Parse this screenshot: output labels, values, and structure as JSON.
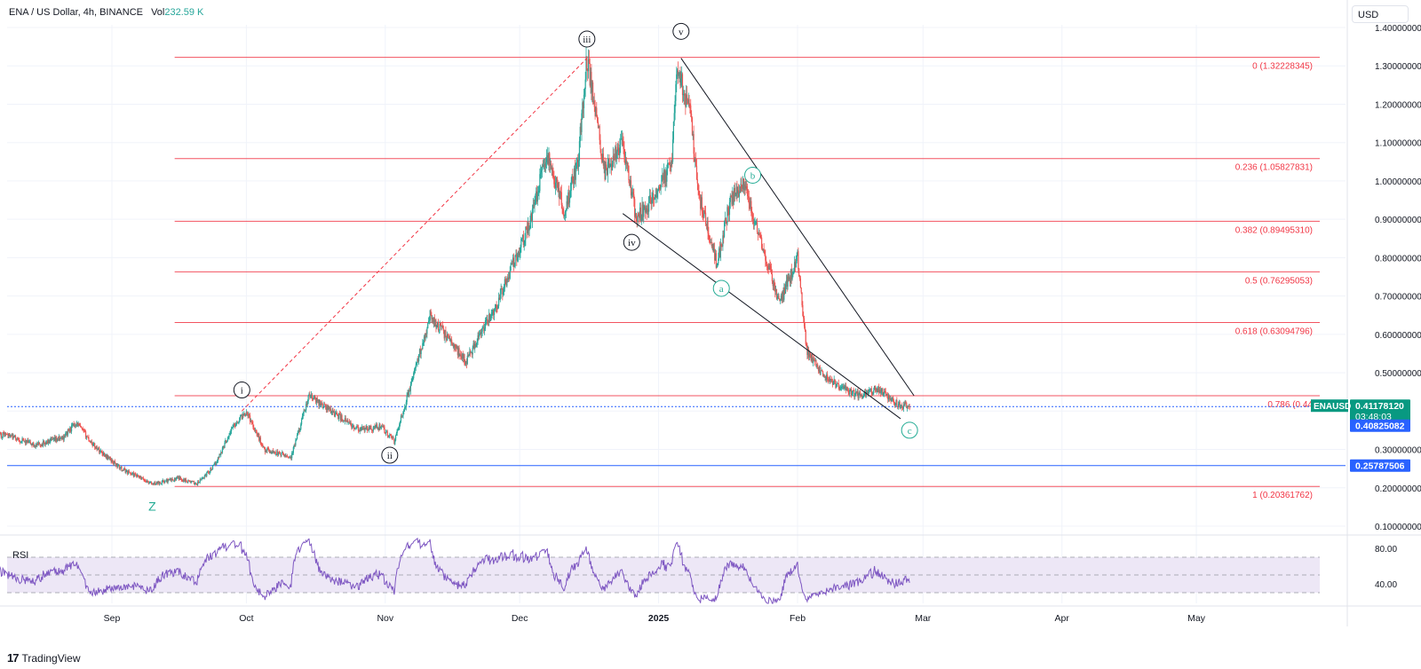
{
  "header": {
    "symbol": "ENA / US Dollar, 4h, BINANCE",
    "vol_label": "Vol",
    "vol_value": "232.59 K"
  },
  "currency_button": "USD",
  "rsi_label": "RSI",
  "brand": "TradingView",
  "colors": {
    "up": "#26a69a",
    "down": "#ef5350",
    "fib": "#f23645",
    "blue_line": "#2962ff",
    "rsi_line": "#7e57c2",
    "rsi_band": "#ede7f6",
    "wave_green": "#22ab94",
    "z_green": "#22ab94"
  },
  "chart_data": {
    "type": "candlestick",
    "price_axis": {
      "min": 0.05,
      "max": 1.42,
      "ticks": [
        "1.40000000",
        "1.30000000",
        "1.20000000",
        "1.10000000",
        "1.00000000",
        "0.90000000",
        "0.80000000",
        "0.70000000",
        "0.60000000",
        "0.50000000",
        "0.30000000",
        "0.20000000",
        "0.10000000"
      ],
      "tick_values": [
        1.4,
        1.3,
        1.2,
        1.1,
        1.0,
        0.9,
        0.8,
        0.7,
        0.6,
        0.5,
        0.3,
        0.2,
        0.1
      ]
    },
    "time_axis": {
      "start": "2024-08-02",
      "end": "2025-05-16",
      "labels": [
        {
          "label": "Sep",
          "date": "2024-09-01",
          "bold": false
        },
        {
          "label": "Oct",
          "date": "2024-10-01",
          "bold": false
        },
        {
          "label": "Nov",
          "date": "2024-11-01",
          "bold": false
        },
        {
          "label": "Dec",
          "date": "2024-12-01",
          "bold": false
        },
        {
          "label": "2025",
          "date": "2025-01-01",
          "bold": true
        },
        {
          "label": "Feb",
          "date": "2025-02-01",
          "bold": false
        },
        {
          "label": "Mar",
          "date": "2025-03-01",
          "bold": false
        },
        {
          "label": "Apr",
          "date": "2025-04-01",
          "bold": false
        },
        {
          "label": "May",
          "date": "2025-05-01",
          "bold": false
        }
      ]
    },
    "price_path": [
      {
        "date": "2024-08-02",
        "price": 0.33
      },
      {
        "date": "2024-08-08",
        "price": 0.34
      },
      {
        "date": "2024-08-15",
        "price": 0.31
      },
      {
        "date": "2024-08-21",
        "price": 0.33
      },
      {
        "date": "2024-08-24",
        "price": 0.37
      },
      {
        "date": "2024-08-28",
        "price": 0.31
      },
      {
        "date": "2024-09-03",
        "price": 0.25
      },
      {
        "date": "2024-09-10",
        "price": 0.21
      },
      {
        "date": "2024-09-16",
        "price": 0.225
      },
      {
        "date": "2024-09-20",
        "price": 0.21
      },
      {
        "date": "2024-09-24",
        "price": 0.26
      },
      {
        "date": "2024-09-28",
        "price": 0.36
      },
      {
        "date": "2024-10-01",
        "price": 0.4
      },
      {
        "date": "2024-10-05",
        "price": 0.3
      },
      {
        "date": "2024-10-11",
        "price": 0.28
      },
      {
        "date": "2024-10-15",
        "price": 0.44
      },
      {
        "date": "2024-10-20",
        "price": 0.4
      },
      {
        "date": "2024-10-26",
        "price": 0.35
      },
      {
        "date": "2024-10-31",
        "price": 0.36
      },
      {
        "date": "2024-11-03",
        "price": 0.32
      },
      {
        "date": "2024-11-07",
        "price": 0.48
      },
      {
        "date": "2024-11-11",
        "price": 0.65
      },
      {
        "date": "2024-11-19",
        "price": 0.53
      },
      {
        "date": "2024-11-26",
        "price": 0.68
      },
      {
        "date": "2024-11-30",
        "price": 0.8
      },
      {
        "date": "2024-12-03",
        "price": 0.88
      },
      {
        "date": "2024-12-07",
        "price": 1.07
      },
      {
        "date": "2024-12-11",
        "price": 0.92
      },
      {
        "date": "2024-12-14",
        "price": 1.05
      },
      {
        "date": "2024-12-16",
        "price": 1.32
      },
      {
        "date": "2024-12-20",
        "price": 1.02
      },
      {
        "date": "2024-12-24",
        "price": 1.1
      },
      {
        "date": "2024-12-27",
        "price": 0.9
      },
      {
        "date": "2024-12-31",
        "price": 0.96
      },
      {
        "date": "2025-01-04",
        "price": 1.05
      },
      {
        "date": "2025-01-05",
        "price": 1.3
      },
      {
        "date": "2025-01-08",
        "price": 1.18
      },
      {
        "date": "2025-01-10",
        "price": 0.96
      },
      {
        "date": "2025-01-14",
        "price": 0.78
      },
      {
        "date": "2025-01-17",
        "price": 0.95
      },
      {
        "date": "2025-01-20",
        "price": 0.99
      },
      {
        "date": "2025-01-24",
        "price": 0.83
      },
      {
        "date": "2025-01-28",
        "price": 0.68
      },
      {
        "date": "2025-02-01",
        "price": 0.8
      },
      {
        "date": "2025-02-03",
        "price": 0.56
      },
      {
        "date": "2025-02-07",
        "price": 0.49
      },
      {
        "date": "2025-02-11",
        "price": 0.46
      },
      {
        "date": "2025-02-15",
        "price": 0.44
      },
      {
        "date": "2025-02-19",
        "price": 0.46
      },
      {
        "date": "2025-02-23",
        "price": 0.42
      },
      {
        "date": "2025-02-26",
        "price": 0.41
      }
    ],
    "fib_levels": [
      {
        "label": "0 (1.32228345)",
        "value": 1.32228345
      },
      {
        "label": "0.236 (1.05827831)",
        "value": 1.05827831
      },
      {
        "label": "0.382 (0.89495310)",
        "value": 0.8949531
      },
      {
        "label": "0.5 (0.76295053)",
        "value": 0.76295053
      },
      {
        "label": "0.618 (0.63094796)",
        "value": 0.63094796
      },
      {
        "label": "0.786 (0.44",
        "value": 0.44
      },
      {
        "label": "1 (0.20361762)",
        "value": 0.20361762
      }
    ],
    "fib_start_date": "2024-09-15",
    "horizontal_lines": [
      {
        "value": 0.4117812,
        "style": "dotted"
      },
      {
        "value": 0.25787506,
        "style": "solid"
      }
    ],
    "price_badges": [
      {
        "label": "ENAUSD",
        "value": "0.41178120",
        "countdown": "03:48:03",
        "price": 0.4117812,
        "color": "#089981"
      },
      {
        "label": "",
        "value": "0.40825082",
        "price": 0.40825082,
        "color": "#2962ff"
      },
      {
        "label": "",
        "value": "0.25787506",
        "price": 0.25787506,
        "color": "#2962ff"
      }
    ],
    "wave_labels": [
      {
        "text": "i",
        "date": "2024-09-30",
        "price": 0.455,
        "color": "black"
      },
      {
        "text": "ii",
        "date": "2024-11-02",
        "price": 0.285,
        "color": "black"
      },
      {
        "text": "iii",
        "date": "2024-12-16",
        "price": 1.37,
        "color": "black"
      },
      {
        "text": "iv",
        "date": "2024-12-26",
        "price": 0.84,
        "color": "black"
      },
      {
        "text": "v",
        "date": "2025-01-06",
        "price": 1.39,
        "color": "black"
      },
      {
        "text": "a",
        "date": "2025-01-15",
        "price": 0.72,
        "color": "green"
      },
      {
        "text": "b",
        "date": "2025-01-22",
        "price": 1.015,
        "color": "green"
      },
      {
        "text": "c",
        "date": "2025-02-26",
        "price": 0.35,
        "color": "green"
      }
    ],
    "z_label": {
      "text": "Z",
      "date": "2024-09-10",
      "price": 0.14
    },
    "trend_lines": [
      {
        "from": {
          "date": "2025-01-06",
          "price": 1.32
        },
        "to": {
          "date": "2025-02-27",
          "price": 0.44
        },
        "style": "solid"
      },
      {
        "from": {
          "date": "2024-12-24",
          "price": 0.915
        },
        "to": {
          "date": "2025-02-24",
          "price": 0.38
        },
        "style": "solid"
      },
      {
        "from": {
          "date": "2024-09-30",
          "price": 0.4
        },
        "to": {
          "date": "2024-12-16",
          "price": 1.32
        },
        "style": "dashed"
      }
    ],
    "rsi": {
      "min": 18,
      "max": 92,
      "ticks": [
        "80.00",
        "40.00"
      ],
      "tick_values": [
        80,
        40
      ],
      "band_upper": 70,
      "band_lower": 30,
      "mid": 50
    }
  }
}
